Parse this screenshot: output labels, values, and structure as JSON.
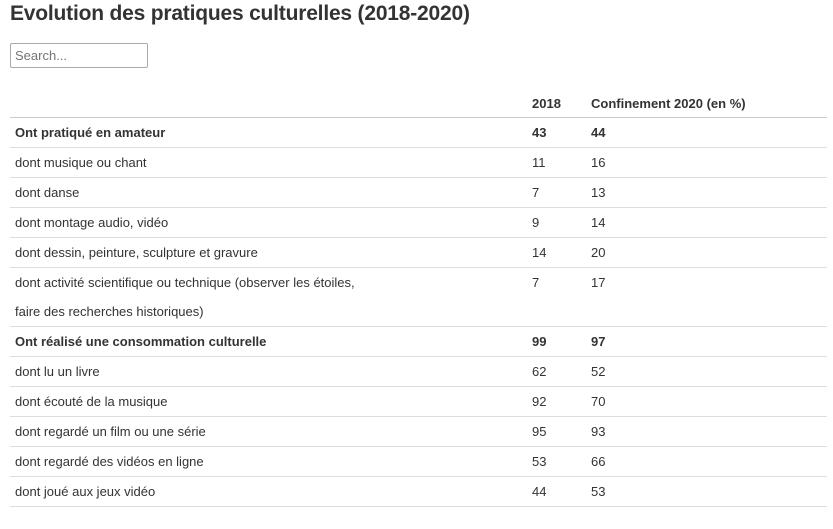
{
  "title": "Evolution des pratiques culturelles (2018-2020)",
  "search": {
    "placeholder": "Search..."
  },
  "chart_data": {
    "type": "table",
    "columns": [
      "",
      "2018",
      "Confinement 2020 (en %)"
    ],
    "rows": [
      {
        "label": "Ont pratiqué en amateur",
        "v2018": "43",
        "v2020": "44",
        "bold": true
      },
      {
        "label": "dont musique ou chant",
        "v2018": "11",
        "v2020": "16",
        "bold": false
      },
      {
        "label": "dont danse",
        "v2018": "7",
        "v2020": "13",
        "bold": false
      },
      {
        "label": "dont montage audio, vidéo",
        "v2018": "9",
        "v2020": "14",
        "bold": false
      },
      {
        "label": "dont dessin, peinture, sculpture et gravure",
        "v2018": "14",
        "v2020": "20",
        "bold": false
      },
      {
        "label": "dont activité scientifique ou technique (observer les étoiles, faire des recherches historiques)",
        "v2018": "7",
        "v2020": "17",
        "bold": false
      },
      {
        "label": "Ont réalisé une consommation culturelle",
        "v2018": "99",
        "v2020": "97",
        "bold": true
      },
      {
        "label": "dont lu un livre",
        "v2018": "62",
        "v2020": "52",
        "bold": false
      },
      {
        "label": "dont écouté de la musique",
        "v2018": "92",
        "v2020": "70",
        "bold": false
      },
      {
        "label": "dont regardé un film ou une série",
        "v2018": "95",
        "v2020": "93",
        "bold": false
      },
      {
        "label": "dont regardé des vidéos en ligne",
        "v2018": "53",
        "v2020": "66",
        "bold": false
      },
      {
        "label": "dont joué aux jeux vidéo",
        "v2018": "44",
        "v2020": "53",
        "bold": false
      }
    ]
  }
}
